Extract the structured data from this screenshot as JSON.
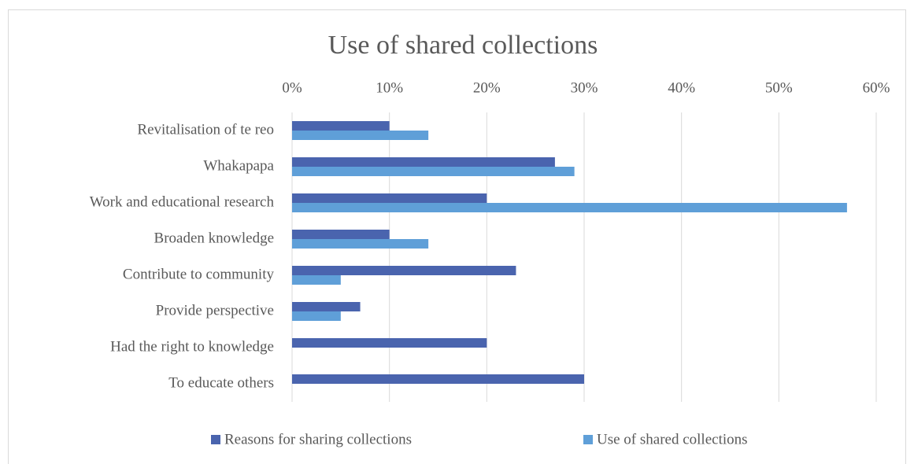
{
  "chart_data": {
    "type": "bar",
    "orientation": "horizontal",
    "title": "Use of shared collections",
    "categories": [
      "Revitalisation of te reo",
      "Whakapapa",
      "Work and educational research",
      "Broaden knowledge",
      "Contribute to community",
      "Provide perspective",
      "Had the right to knowledge",
      "To educate others"
    ],
    "series": [
      {
        "name": "Reasons for sharing collections",
        "color": "#4a64ae",
        "values": [
          10,
          27,
          20,
          10,
          23,
          7,
          20,
          30
        ]
      },
      {
        "name": "Use of shared collections",
        "color": "#5f9fd8",
        "values": [
          14,
          29,
          57,
          14,
          5,
          5,
          0,
          0
        ]
      }
    ],
    "xlim": [
      0,
      60
    ],
    "xticks": [
      {
        "value": 0,
        "label": "0%"
      },
      {
        "value": 10,
        "label": "10%"
      },
      {
        "value": 20,
        "label": "20%"
      },
      {
        "value": 30,
        "label": "30%"
      },
      {
        "value": 40,
        "label": "40%"
      },
      {
        "value": 50,
        "label": "50%"
      },
      {
        "value": 60,
        "label": "60%"
      }
    ],
    "grid": true,
    "legend": "bottom"
  }
}
